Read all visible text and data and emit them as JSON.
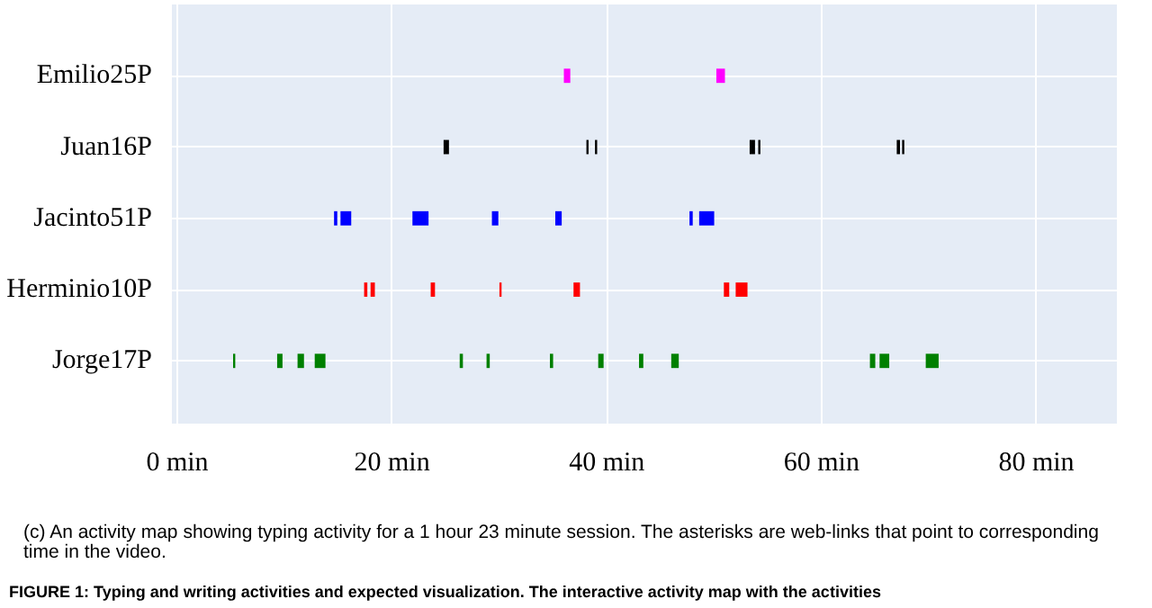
{
  "chart_data": {
    "type": "bar",
    "orientation": "horizontal",
    "categories": [
      "Emilio25P",
      "Juan16P",
      "Jacinto51P",
      "Herminio10P",
      "Jorge17P"
    ],
    "series": [
      {
        "colors": [
          "#ff00ff",
          "#000000",
          "#0000ff",
          "#ff0000",
          "#008000"
        ],
        "base": [
          36.0,
          24.8,
          14.6,
          17.4,
          5.2
        ],
        "values": [
          0.6,
          0.5,
          0.3,
          0.3,
          0.2
        ]
      },
      {
        "colors": [
          "#ff00ff",
          "#000000",
          "#0000ff",
          "#ff0000",
          "#008000"
        ],
        "base": [
          50.2,
          38.1,
          15.2,
          18.0,
          9.3
        ],
        "values": [
          0.8,
          0.2,
          1.0,
          0.4,
          0.5
        ]
      },
      {
        "colors": [
          "#ff00ff",
          "#000000",
          "#0000ff",
          "#ff0000",
          "#008000"
        ],
        "base": [
          null,
          38.9,
          21.9,
          23.6,
          11.2
        ],
        "values": [
          null,
          0.2,
          1.5,
          0.4,
          0.6
        ]
      },
      {
        "colors": [
          "#ff00ff",
          "#000000",
          "#0000ff",
          "#ff0000",
          "#008000"
        ],
        "base": [
          null,
          53.3,
          29.3,
          30.0,
          12.8
        ],
        "values": [
          null,
          0.5,
          0.6,
          0.2,
          1.0
        ]
      },
      {
        "colors": [
          "#ff00ff",
          "#000000",
          "#0000ff",
          "#ff0000",
          "#008000"
        ],
        "base": [
          null,
          54.1,
          35.2,
          36.9,
          26.3
        ],
        "values": [
          null,
          0.2,
          0.6,
          0.6,
          0.3
        ]
      },
      {
        "colors": [
          "#ff00ff",
          "#000000",
          "#0000ff",
          "#ff0000",
          "#008000"
        ],
        "base": [
          null,
          67.0,
          47.7,
          50.9,
          28.8
        ],
        "values": [
          null,
          0.3,
          0.3,
          0.5,
          0.3
        ]
      },
      {
        "colors": [
          "#ff00ff",
          "#000000",
          "#0000ff",
          "#ff0000",
          "#008000"
        ],
        "base": [
          null,
          67.5,
          48.6,
          52.0,
          34.7
        ],
        "values": [
          null,
          0.2,
          1.4,
          1.1,
          0.3
        ]
      },
      {
        "colors": [
          "#ff00ff",
          "#000000",
          "#0000ff",
          "#ff0000",
          "#008000"
        ],
        "base": [
          null,
          null,
          null,
          null,
          39.2
        ],
        "values": [
          null,
          null,
          null,
          null,
          0.5
        ]
      },
      {
        "colors": [
          "#ff00ff",
          "#000000",
          "#0000ff",
          "#ff0000",
          "#008000"
        ],
        "base": [
          null,
          null,
          null,
          null,
          43.0
        ],
        "values": [
          null,
          null,
          null,
          null,
          0.4
        ]
      },
      {
        "colors": [
          "#ff00ff",
          "#000000",
          "#0000ff",
          "#ff0000",
          "#008000"
        ],
        "base": [
          null,
          null,
          null,
          null,
          46.0
        ],
        "values": [
          null,
          null,
          null,
          null,
          0.7
        ]
      },
      {
        "colors": [
          "#ff00ff",
          "#000000",
          "#0000ff",
          "#ff0000",
          "#008000"
        ],
        "base": [
          null,
          null,
          null,
          null,
          64.5
        ],
        "values": [
          null,
          null,
          null,
          null,
          0.5
        ]
      },
      {
        "colors": [
          "#ff00ff",
          "#000000",
          "#0000ff",
          "#ff0000",
          "#008000"
        ],
        "base": [
          null,
          null,
          null,
          null,
          65.4
        ],
        "values": [
          null,
          null,
          null,
          null,
          0.9
        ]
      },
      {
        "colors": [
          "#ff00ff",
          "#000000",
          "#0000ff",
          "#ff0000",
          "#008000"
        ],
        "base": [
          null,
          null,
          null,
          null,
          69.7
        ],
        "values": [
          null,
          null,
          null,
          null,
          1.2
        ]
      }
    ],
    "xlim": [
      -0.5,
      87.5
    ],
    "xticks": [
      {
        "value": 0,
        "label": "0 min"
      },
      {
        "value": 20,
        "label": "20 min"
      },
      {
        "value": 40,
        "label": "40 min"
      },
      {
        "value": 60,
        "label": "60 min"
      },
      {
        "value": 80,
        "label": "80 min"
      }
    ],
    "grid": true,
    "annotations": [
      "(c) An activity map showing typing activity for a 1 hour 23 minute session. The asterisks are web-links that point to corresponding time in the video.",
      "FIGURE 1: Typing and writing activities and expected visualization. The interactive activity map with the activities"
    ]
  }
}
